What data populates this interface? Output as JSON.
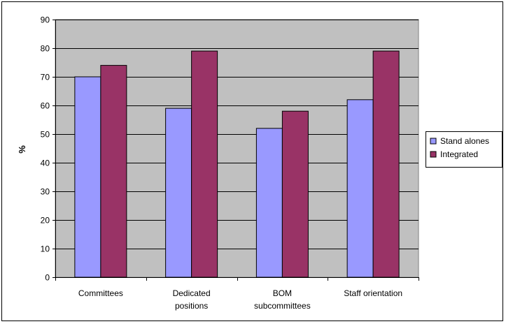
{
  "chart_data": {
    "type": "bar",
    "categories": [
      [
        "Committees"
      ],
      [
        "Dedicated",
        "positions"
      ],
      [
        "BOM",
        "subcommittees"
      ],
      [
        "Staff orientation"
      ]
    ],
    "series": [
      {
        "name": "Stand alones",
        "values": [
          70,
          59,
          52,
          62
        ],
        "color": "#9999ff"
      },
      {
        "name": "Integrated",
        "values": [
          74,
          79,
          58,
          79
        ],
        "color": "#993366"
      }
    ],
    "ylabel": "%",
    "ylim": [
      0,
      90
    ],
    "yticks": [
      0,
      10,
      20,
      30,
      40,
      50,
      60,
      70,
      80,
      90
    ],
    "grid": true,
    "plot_background": "#c0c0c0",
    "legend_position": "right"
  }
}
